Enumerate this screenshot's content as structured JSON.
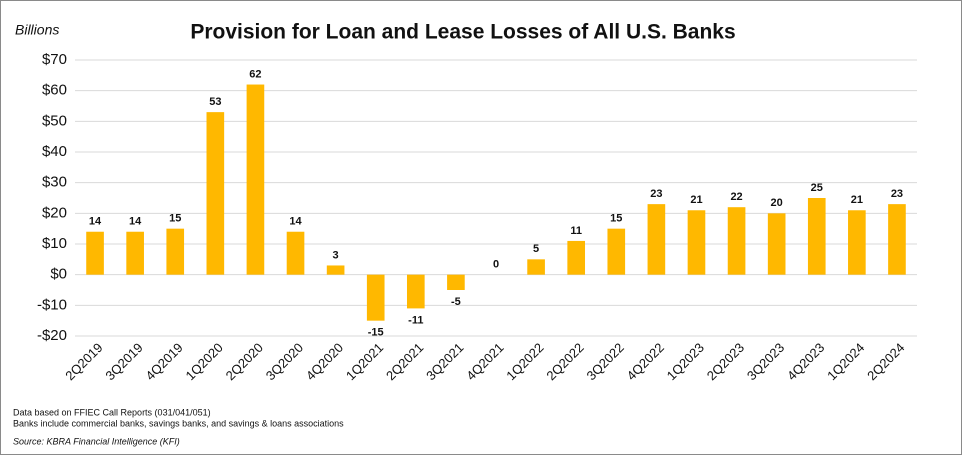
{
  "chart_data": {
    "type": "bar",
    "title": "Provision for Loan and Lease Losses of All U.S. Banks",
    "y_label": "Billions",
    "notes": [
      "Data based on FFIEC Call Reports (031/041/051)",
      "Banks include commercial banks, savings banks, and savings & loans associations"
    ],
    "source": "Source: KBRA Financial Intelligence (KFI)",
    "categories": [
      "2Q2019",
      "3Q2019",
      "4Q2019",
      "1Q2020",
      "2Q2020",
      "3Q2020",
      "4Q2020",
      "1Q2021",
      "2Q2021",
      "3Q2021",
      "4Q2021",
      "1Q2022",
      "2Q2022",
      "3Q2022",
      "4Q2022",
      "1Q2023",
      "2Q2023",
      "3Q2023",
      "4Q2023",
      "1Q2024",
      "2Q2024"
    ],
    "values": [
      14,
      14,
      15,
      53,
      62,
      14,
      3,
      -15,
      -11,
      -5,
      0,
      5,
      11,
      15,
      23,
      21,
      22,
      20,
      25,
      21,
      23
    ],
    "color": "#ffb800",
    "ylim": [
      -20,
      70
    ],
    "yticks": [
      {
        "value": -20,
        "label": "-$20"
      },
      {
        "value": -10,
        "label": "-$10"
      },
      {
        "value": 0,
        "label": "$0"
      },
      {
        "value": 10,
        "label": "$10"
      },
      {
        "value": 20,
        "label": "$20"
      },
      {
        "value": 30,
        "label": "$30"
      },
      {
        "value": 40,
        "label": "$40"
      },
      {
        "value": 50,
        "label": "$50"
      },
      {
        "value": 60,
        "label": "$60"
      },
      {
        "value": 70,
        "label": "$70"
      }
    ],
    "grid": true
  }
}
